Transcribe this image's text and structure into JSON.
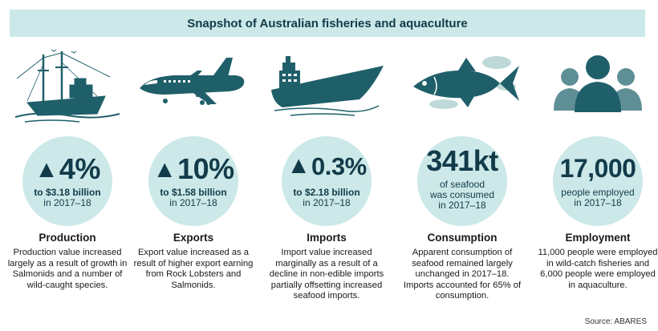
{
  "title": "Snapshot of Australian fisheries and aquaculture",
  "accent_color": "#cce8e8",
  "icon_color": "#1f5f6a",
  "columns": [
    {
      "icon": "fishing-trawler-icon",
      "arrow": "🡅",
      "value": "4%",
      "sub_line1": "to $3.18 billion",
      "sub_line2": "in 2017–18",
      "heading": "Production",
      "description": "Production value increased largely as a result of growth in Salmonids and a number of wild-caught species."
    },
    {
      "icon": "airplane-icon",
      "arrow": "🡅",
      "value": "10%",
      "sub_line1": "to $1.58 billion",
      "sub_line2": "in 2017–18",
      "heading": "Exports",
      "description": "Export value increased as a result of higher export earning from Rock Lobsters and Salmonids."
    },
    {
      "icon": "cargo-ship-icon",
      "arrow": "🡅",
      "value": "0.3%",
      "sub_line1": "to $2.18 billion",
      "sub_line2": "in 2017–18",
      "heading": "Imports",
      "description": "Import value increased marginally as a result of a decline in non-edible imports partially offsetting increased seafood imports."
    },
    {
      "icon": "tuna-fish-icon",
      "value": "341kt",
      "sub_line1": "of seafood",
      "sub_line2": "was consumed",
      "sub_line3": "in 2017–18",
      "heading": "Consumption",
      "description": "Apparent consumption of seafood remained largely unchanged in 2017–18. Imports accounted for 65% of consumption."
    },
    {
      "icon": "people-group-icon",
      "value": "17,000",
      "sub_line1": "people employed",
      "sub_line2": "in 2017–18",
      "heading": "Employment",
      "description": "11,000 people were employed in wild-catch fisheries and 6,000 people were employed in aquaculture."
    }
  ],
  "source": "Source: ABARES"
}
